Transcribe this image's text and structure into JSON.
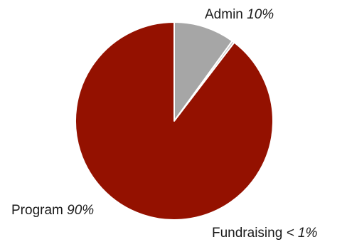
{
  "chart_data": {
    "type": "pie",
    "title": "",
    "start_angle_deg": 0,
    "direction": "clockwise",
    "slices": [
      {
        "label": "Admin",
        "pct_text": "10%",
        "value": 10,
        "color": "#a6a6a6"
      },
      {
        "label": "Fundraising",
        "pct_text": "< 1%",
        "value": 0.4,
        "color": "#c0c0c0"
      },
      {
        "label": "Program",
        "pct_text": "90%",
        "value": 89.6,
        "color": "#941100"
      }
    ],
    "border_color": "#ffffff"
  }
}
